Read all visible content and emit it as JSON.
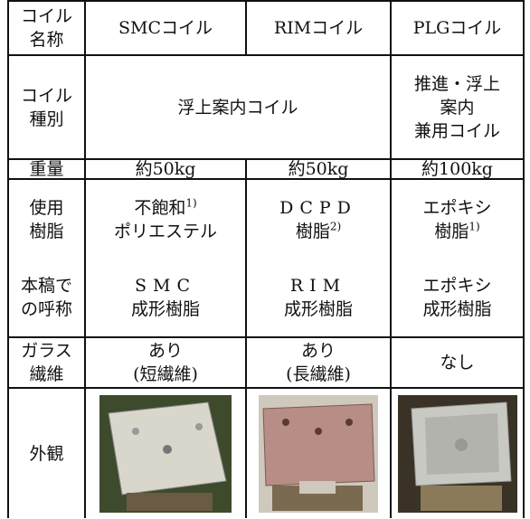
{
  "table": {
    "header": {
      "label": [
        "コイル",
        "名称"
      ],
      "columns": [
        "SMCコイル",
        "RIMコイル",
        "PLGコイル"
      ]
    },
    "type": {
      "label": [
        "コイル",
        "種別"
      ],
      "shared": "浮上案内コイル",
      "plg": [
        "推進・浮上",
        "案内",
        "兼用コイル"
      ]
    },
    "weight": {
      "label": "重量",
      "values": [
        "約50kg",
        "約50kg",
        "約100kg"
      ]
    },
    "resin": {
      "label": [
        "使用",
        "樹脂"
      ],
      "values": [
        {
          "line1": "不飽和",
          "note1": "1)",
          "line2": "ポリエステル"
        },
        {
          "line1": "DCPD",
          "line2": "樹脂",
          "note2": "2)"
        },
        {
          "line1": "エポキシ",
          "line2": "樹脂",
          "note2": "1)"
        }
      ]
    },
    "name": {
      "label": [
        "本稿で",
        "の呼称"
      ],
      "values": [
        [
          "SMC",
          "成形樹脂"
        ],
        [
          "RIM",
          "成形樹脂"
        ],
        [
          "エポキシ",
          "成形樹脂"
        ]
      ]
    },
    "glass": {
      "label": [
        "ガラス",
        "繊維"
      ],
      "values": [
        [
          "あり",
          "(短繊維)"
        ],
        [
          "あり",
          "(長繊維)"
        ],
        [
          "なし"
        ]
      ]
    },
    "appearance": {
      "label": "外観"
    }
  }
}
